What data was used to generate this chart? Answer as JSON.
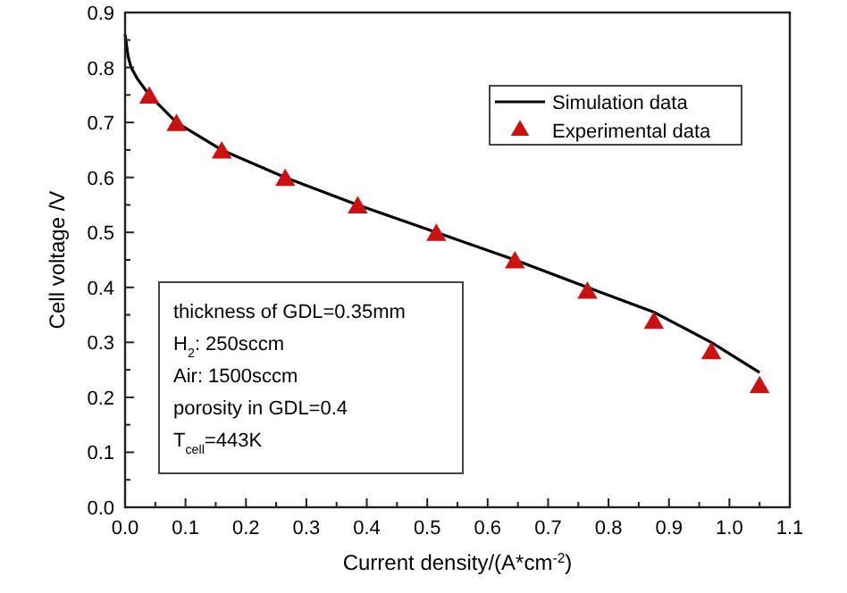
{
  "chart_data": {
    "type": "line",
    "xlabel": "Current density/(A*cm$^{-2}$)",
    "ylabel": "Cell voltage /V",
    "xlim": [
      0,
      1.1
    ],
    "ylim": [
      0,
      0.9
    ],
    "xticks": [
      {
        "value": 0,
        "label": "0.0"
      },
      0.1,
      0.2,
      0.3,
      0.4,
      0.5,
      0.6,
      0.7,
      0.8,
      0.9,
      {
        "value": 1,
        "label": "1.0"
      },
      1.1
    ],
    "yticks": [
      {
        "value": 0,
        "label": "0.0"
      },
      0.1,
      0.2,
      0.3,
      0.4,
      0.5,
      0.6,
      0.7,
      0.8,
      0.9
    ],
    "series": [
      {
        "name": "Simulation data",
        "color": "#000000",
        "marker": "none",
        "x": [
          0,
          0.005,
          0.01,
          0.02,
          0.04,
          0.085,
          0.16,
          0.265,
          0.385,
          0.515,
          0.645,
          0.765,
          0.875,
          0.97,
          1.05
        ],
        "values": [
          0.86,
          0.82,
          0.8,
          0.78,
          0.75,
          0.7,
          0.65,
          0.6,
          0.55,
          0.5,
          0.45,
          0.4,
          0.355,
          0.3,
          0.245
        ]
      },
      {
        "name": "Experimental data",
        "type": "scatter",
        "color": "#cc1111",
        "marker": "triangle",
        "x": [
          0.04,
          0.085,
          0.16,
          0.265,
          0.385,
          0.515,
          0.645,
          0.765,
          0.875,
          0.97,
          1.05
        ],
        "values": [
          0.745,
          0.695,
          0.645,
          0.595,
          0.545,
          0.495,
          0.445,
          0.39,
          0.335,
          0.28,
          0.218
        ]
      }
    ],
    "legend": "top right",
    "grid": false,
    "annotations": [
      "thickness of GDL=0.35mm",
      "H$_{2}$: 250sccm",
      "Air: 1500sccm",
      "porosity in GDL=0.4",
      "T$_{cell}$=443K"
    ]
  }
}
